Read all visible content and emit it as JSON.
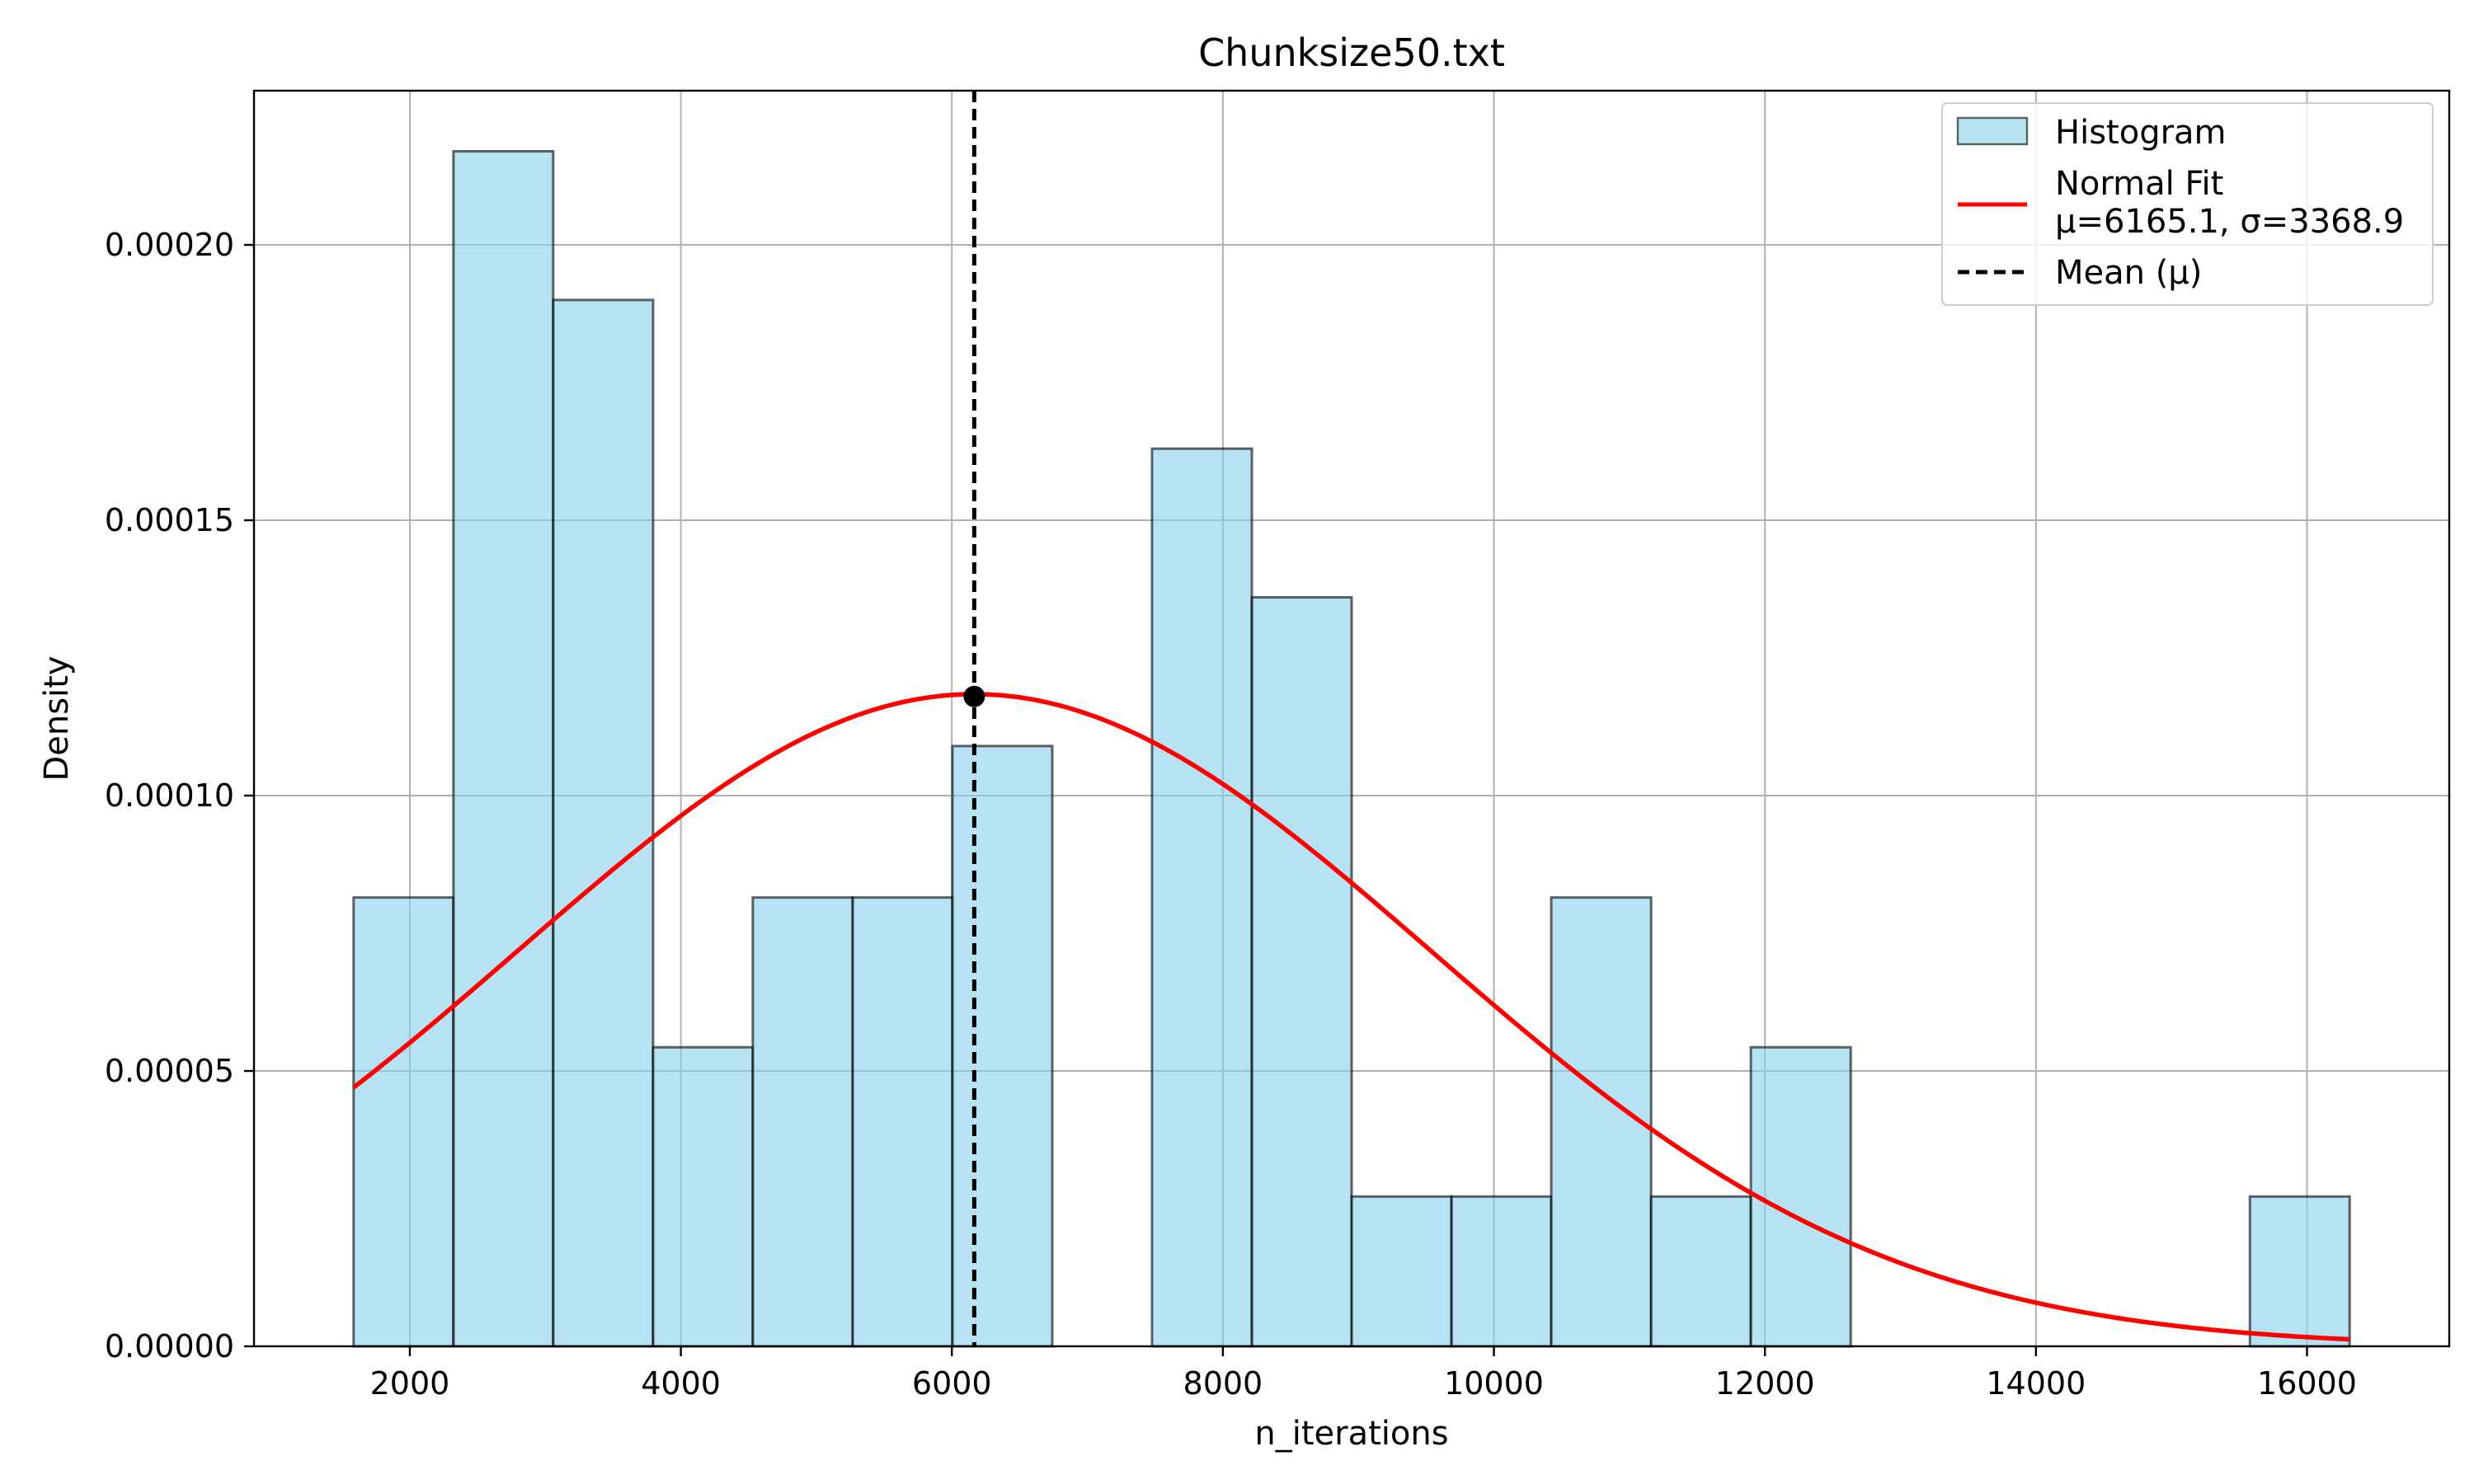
{
  "chart_data": {
    "type": "bar",
    "title": "Chunksize50.txt",
    "xlabel": "n_iterations",
    "ylabel": "Density",
    "xlim": [
      850,
      17050
    ],
    "ylim": [
      0,
      0.000228
    ],
    "grid": true,
    "legend_position": "top-right",
    "xticks": [
      2000,
      4000,
      6000,
      8000,
      10000,
      12000,
      14000,
      16000
    ],
    "xtick_labels": [
      "2000",
      "4000",
      "6000",
      "8000",
      "10000",
      "12000",
      "14000",
      "16000"
    ],
    "yticks": [
      0,
      5e-05,
      0.0001,
      0.00015,
      0.0002
    ],
    "ytick_labels": [
      "0.00000",
      "0.00005",
      "0.00010",
      "0.00015",
      "0.00020"
    ],
    "series": [
      {
        "name": "Histogram",
        "kind": "histogram",
        "color": "#87ceeb",
        "bins": [
          {
            "x0": 1585,
            "x1": 2322,
            "density": 8.15e-05
          },
          {
            "x0": 2322,
            "x1": 3058,
            "density": 0.000217
          },
          {
            "x0": 3058,
            "x1": 3795,
            "density": 0.00019
          },
          {
            "x0": 3795,
            "x1": 4531,
            "density": 5.43e-05
          },
          {
            "x0": 4531,
            "x1": 5268,
            "density": 8.15e-05
          },
          {
            "x0": 5268,
            "x1": 6004,
            "density": 8.15e-05
          },
          {
            "x0": 6004,
            "x1": 6741,
            "density": 0.000109
          },
          {
            "x0": 6741,
            "x1": 7477,
            "density": 0
          },
          {
            "x0": 7477,
            "x1": 8214,
            "density": 0.000163
          },
          {
            "x0": 8214,
            "x1": 8950,
            "density": 0.000136
          },
          {
            "x0": 8950,
            "x1": 9687,
            "density": 2.72e-05
          },
          {
            "x0": 9687,
            "x1": 10423,
            "density": 2.72e-05
          },
          {
            "x0": 10423,
            "x1": 11160,
            "density": 8.15e-05
          },
          {
            "x0": 11160,
            "x1": 11896,
            "density": 2.72e-05
          },
          {
            "x0": 11896,
            "x1": 12633,
            "density": 5.43e-05
          },
          {
            "x0": 12633,
            "x1": 13369,
            "density": 0
          },
          {
            "x0": 13369,
            "x1": 14106,
            "density": 0
          },
          {
            "x0": 14106,
            "x1": 14842,
            "density": 0
          },
          {
            "x0": 14842,
            "x1": 15579,
            "density": 0
          },
          {
            "x0": 15579,
            "x1": 16315,
            "density": 2.72e-05
          }
        ]
      },
      {
        "name": "Normal Fit\nμ=6165.1, σ=3368.9",
        "kind": "line",
        "color": "#ff0000",
        "mu": 6165.1,
        "sigma": 3368.9,
        "x_range": [
          1585,
          16315
        ]
      },
      {
        "name": "Mean (μ)",
        "kind": "vline",
        "color": "#000000",
        "x": 6165.1
      }
    ],
    "peak_marker": {
      "x": 6165.1,
      "y": 0.000118
    }
  },
  "legend": {
    "items": [
      {
        "label_lines": [
          "Histogram"
        ]
      },
      {
        "label_lines": [
          "Normal Fit",
          "μ=6165.1, σ=3368.9"
        ]
      },
      {
        "label_lines": [
          "Mean (μ)"
        ]
      }
    ]
  }
}
